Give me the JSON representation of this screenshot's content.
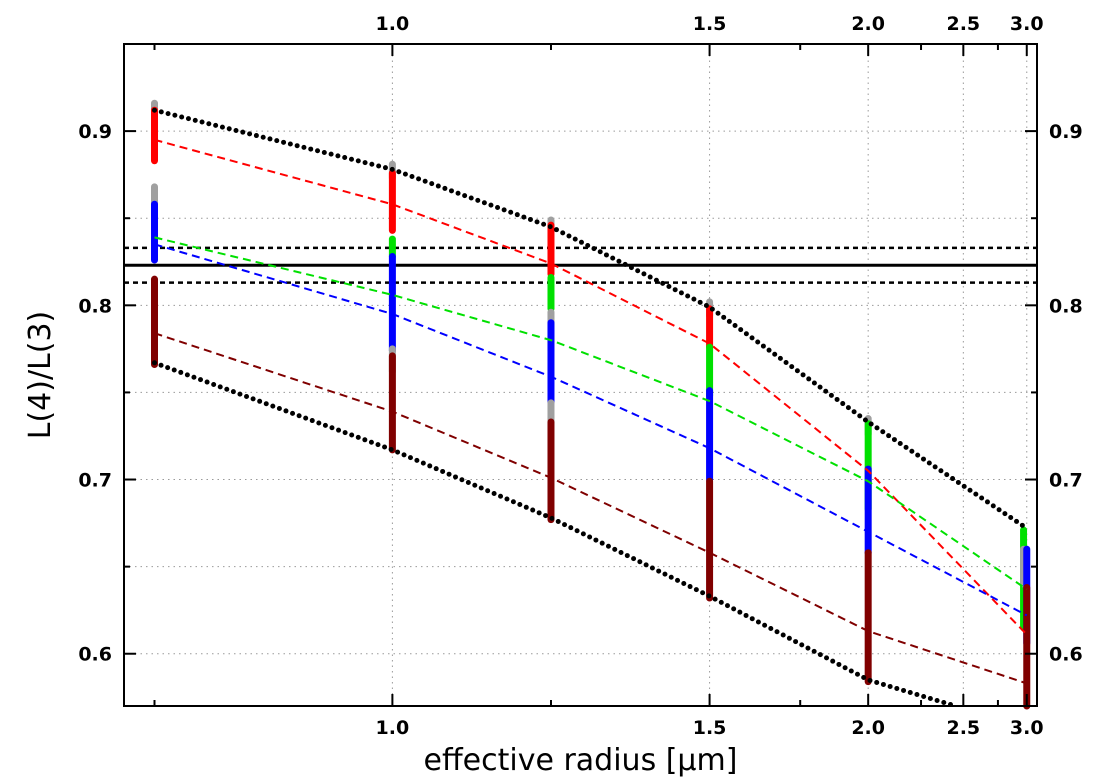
{
  "chart_data": {
    "type": "line",
    "title": "",
    "xlabel": "effective radius [μm]",
    "ylabel": "L(4)/L(3)",
    "xscale": "reciprocal",
    "xlim": [
      0.78,
      3.1
    ],
    "ylim": [
      0.57,
      0.95
    ],
    "x_ticks": [
      1.0,
      1.5,
      2.0,
      2.5,
      3.0
    ],
    "x_tick_labels": [
      "1.0",
      "1.5",
      "2.0",
      "2.5",
      "3.0"
    ],
    "y_ticks": [
      0.6,
      0.7,
      0.8,
      0.9
    ],
    "y_tick_labels": [
      "0.6",
      "0.7",
      "0.8",
      "0.9"
    ],
    "grid": true,
    "ticks_mirrored": "top and right axes repeat the tick labels",
    "colors": {
      "red": "#ff0000",
      "green": "#00e000",
      "blue": "#0000ff",
      "darkred": "#800000",
      "black": "#000000",
      "gray": "#a0a0a0"
    },
    "x": [
      0.8,
      1.0,
      1.2,
      1.5,
      2.0,
      3.0
    ],
    "series": [
      {
        "color": "red",
        "style": "dashed",
        "values": [
          0.895,
          0.858,
          0.824,
          0.778,
          0.705,
          0.611
        ]
      },
      {
        "color": "green",
        "style": "dashed",
        "values": [
          0.839,
          0.806,
          0.78,
          0.745,
          0.699,
          0.637
        ]
      },
      {
        "color": "blue",
        "style": "dashed",
        "values": [
          0.835,
          0.795,
          0.759,
          0.718,
          0.67,
          0.622
        ]
      },
      {
        "color": "darkred",
        "style": "dashed",
        "values": [
          0.784,
          0.739,
          0.701,
          0.658,
          0.613,
          0.583
        ]
      },
      {
        "color": "black",
        "style": "dotted",
        "values": [
          0.912,
          0.878,
          0.845,
          0.799,
          0.733,
          0.672
        ]
      },
      {
        "color": "black",
        "style": "dotted",
        "x": [
          0.8,
          1.0,
          1.2,
          1.5,
          2.0,
          2.45
        ],
        "values": [
          0.767,
          0.717,
          0.678,
          0.633,
          0.585,
          0.57
        ]
      }
    ],
    "horizontal_lines": [
      {
        "y": 0.823,
        "style": "solid",
        "color": "black"
      },
      {
        "y": 0.833,
        "style": "dotted",
        "color": "black"
      },
      {
        "y": 0.813,
        "style": "dotted",
        "color": "black"
      }
    ],
    "point_columns": [
      {
        "x": 0.8,
        "segments": [
          {
            "color": "gray",
            "y0": 0.905,
            "y1": 0.916
          },
          {
            "color": "red",
            "y0": 0.883,
            "y1": 0.912
          },
          {
            "color": "gray",
            "y0": 0.848,
            "y1": 0.868
          },
          {
            "color": "blue",
            "y0": 0.826,
            "y1": 0.858
          },
          {
            "color": "darkred",
            "y0": 0.766,
            "y1": 0.815
          }
        ]
      },
      {
        "x": 1.0,
        "segments": [
          {
            "color": "gray",
            "y0": 0.873,
            "y1": 0.881
          },
          {
            "color": "red",
            "y0": 0.843,
            "y1": 0.876
          },
          {
            "color": "green",
            "y0": 0.828,
            "y1": 0.838
          },
          {
            "color": "blue",
            "y0": 0.774,
            "y1": 0.828
          },
          {
            "color": "gray",
            "y0": 0.762,
            "y1": 0.775
          },
          {
            "color": "darkred",
            "y0": 0.717,
            "y1": 0.771
          }
        ]
      },
      {
        "x": 1.2,
        "segments": [
          {
            "color": "gray",
            "y0": 0.843,
            "y1": 0.849
          },
          {
            "color": "red",
            "y0": 0.818,
            "y1": 0.846
          },
          {
            "color": "green",
            "y0": 0.798,
            "y1": 0.816
          },
          {
            "color": "gray",
            "y0": 0.774,
            "y1": 0.796
          },
          {
            "color": "blue",
            "y0": 0.744,
            "y1": 0.79
          },
          {
            "color": "gray",
            "y0": 0.733,
            "y1": 0.744
          },
          {
            "color": "darkred",
            "y0": 0.677,
            "y1": 0.733
          }
        ]
      },
      {
        "x": 1.5,
        "segments": [
          {
            "color": "gray",
            "y0": 0.794,
            "y1": 0.802
          },
          {
            "color": "red",
            "y0": 0.776,
            "y1": 0.798
          },
          {
            "color": "green",
            "y0": 0.748,
            "y1": 0.776
          },
          {
            "color": "blue",
            "y0": 0.7,
            "y1": 0.751
          },
          {
            "color": "darkred",
            "y0": 0.632,
            "y1": 0.699
          }
        ]
      },
      {
        "x": 2.0,
        "segments": [
          {
            "color": "gray",
            "y0": 0.726,
            "y1": 0.735
          },
          {
            "color": "green",
            "y0": 0.683,
            "y1": 0.732
          },
          {
            "color": "blue",
            "y0": 0.658,
            "y1": 0.706
          },
          {
            "color": "darkred",
            "y0": 0.584,
            "y1": 0.658
          }
        ]
      },
      {
        "x": 2.97,
        "segments": [
          {
            "color": "green",
            "y0": 0.615,
            "y1": 0.671
          },
          {
            "color": "gray",
            "y0": 0.64,
            "y1": 0.66
          }
        ]
      },
      {
        "x": 3.0,
        "segments": [
          {
            "color": "blue",
            "y0": 0.606,
            "y1": 0.66
          },
          {
            "color": "darkred",
            "y0": 0.57,
            "y1": 0.638
          }
        ]
      }
    ]
  }
}
